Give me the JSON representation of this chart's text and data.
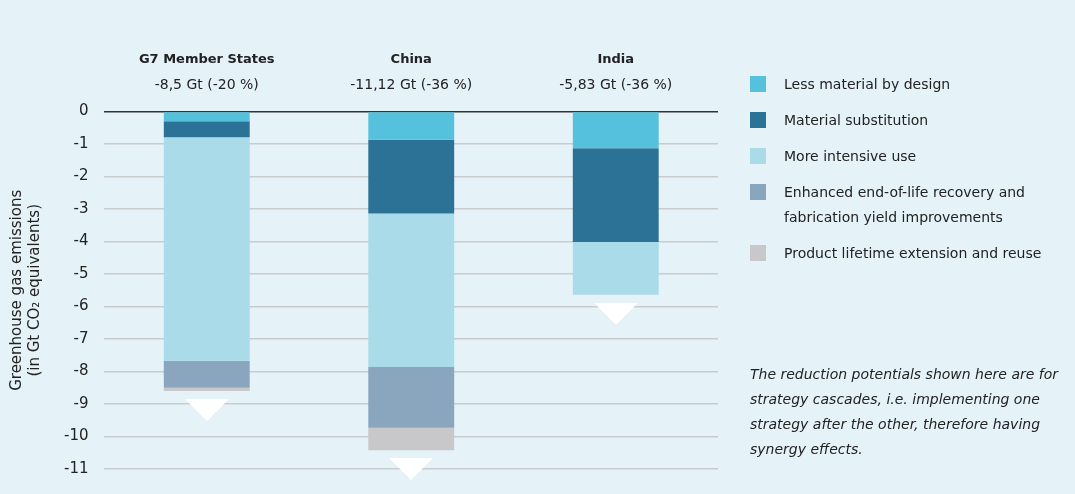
{
  "chart_data": {
    "type": "bar",
    "stacked": true,
    "categories": [
      "G7 Member States",
      "China",
      "India"
    ],
    "ylabel": "Greenhouse gas emissions\n(in Gt CO₂ equivalents)",
    "ylim": [
      -11,
      0
    ],
    "yticks": [
      0,
      -1,
      -2,
      -3,
      -4,
      -5,
      -6,
      -7,
      -8,
      -9,
      -10,
      -11
    ],
    "grid": "y",
    "legend": "right",
    "series": [
      {
        "name": "Less material by design",
        "color": "#56c1dc",
        "values": [
          -0.3,
          -0.87,
          -1.13
        ]
      },
      {
        "name": "Material substitution",
        "color": "#2c7296",
        "values": [
          -0.49,
          -2.27,
          -2.88
        ]
      },
      {
        "name": "More intensive use",
        "color": "#aadbe9",
        "values": [
          -6.88,
          -4.72,
          -1.63
        ]
      },
      {
        "name": "Enhanced end-of-life recovery and fabrication yield improvements",
        "color": "#8aa5be",
        "values": [
          -0.83,
          -1.87,
          null
        ]
      },
      {
        "name": "Product lifetime extension and reuse",
        "color": "#c8c7c9",
        "values": [
          -0.1,
          -0.69,
          null
        ]
      }
    ],
    "annotations": [
      "-8,5 Gt (-20 %)",
      "-11,12 Gt (-36 %)",
      "-5,83 Gt (-36 %)",
      "The reduction potentials shown here are for strategy cascades, i.e. implementing one strategy after the other, therefore having synergy effects."
    ]
  }
}
